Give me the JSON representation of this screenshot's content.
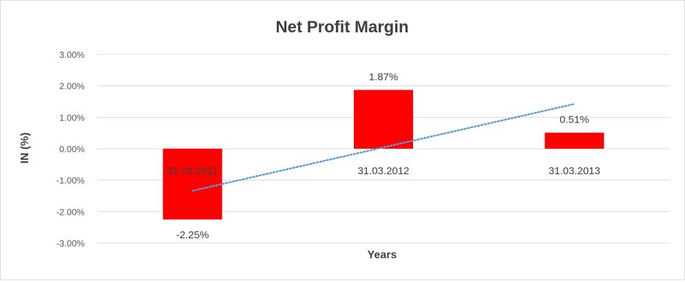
{
  "chart_data": {
    "type": "bar",
    "title": "Net Profit Margin",
    "xlabel": "Years",
    "ylabel": "IN (%)",
    "categories": [
      "31.03.2011",
      "31.03.2012",
      "31.03.2013"
    ],
    "series": [
      {
        "values": [
          -2.25,
          1.87,
          0.51
        ],
        "data_labels": [
          "-2.25%",
          "1.87%",
          "0.51%"
        ],
        "color": "#ff0000"
      }
    ],
    "y_ticks": [
      3,
      2,
      1,
      0,
      -1,
      -2,
      -3
    ],
    "y_tick_labels": [
      "3.00%",
      "2.00%",
      "1.00%",
      "0.00%",
      "-1.00%",
      "-2.00%",
      "-3.00%"
    ],
    "ylim": [
      -3,
      3
    ],
    "grid": true,
    "trendline": {
      "type": "linear",
      "color": "#5b9bd5",
      "style": "dotted"
    }
  }
}
